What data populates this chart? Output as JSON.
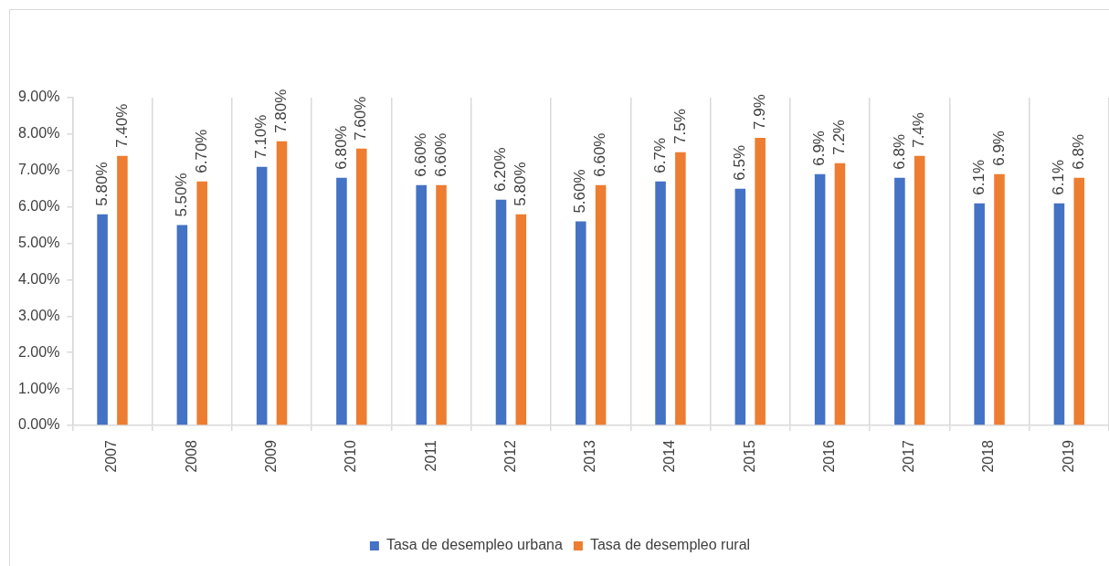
{
  "chart_data": {
    "type": "bar",
    "categories": [
      "2007",
      "2008",
      "2009",
      "2010",
      "2011",
      "2012",
      "2013",
      "2014",
      "2015",
      "2016",
      "2017",
      "2018",
      "2019"
    ],
    "series": [
      {
        "name": "Tasa de desempleo urbana",
        "color": "#4472c4",
        "values": [
          5.8,
          5.5,
          7.1,
          6.8,
          6.6,
          6.2,
          5.6,
          6.7,
          6.5,
          6.9,
          6.8,
          6.1,
          6.1
        ],
        "value_labels": [
          "5.80%",
          "5.50%",
          "7.10%",
          "6.80%",
          "6.60%",
          "6.20%",
          "5.60%",
          "6.7%",
          "6.5%",
          "6.9%",
          "6.8%",
          "6.1%",
          "6.1%"
        ]
      },
      {
        "name": "Tasa de desempleo rural",
        "color": "#ed7d31",
        "values": [
          7.4,
          6.7,
          7.8,
          7.6,
          6.6,
          5.8,
          6.6,
          7.5,
          7.9,
          7.2,
          7.4,
          6.9,
          6.8
        ],
        "value_labels": [
          "7.40%",
          "6.70%",
          "7.80%",
          "7.60%",
          "6.60%",
          "5.80%",
          "6.60%",
          "7.5%",
          "7.9%",
          "7.2%",
          "7.4%",
          "6.9%",
          "6.8%"
        ]
      }
    ],
    "ylim": [
      0,
      9
    ],
    "yticks": [
      {
        "value": 0,
        "label": "0.00%"
      },
      {
        "value": 1,
        "label": "1.00%"
      },
      {
        "value": 2,
        "label": "2.00%"
      },
      {
        "value": 3,
        "label": "3.00%"
      },
      {
        "value": 4,
        "label": "4.00%"
      },
      {
        "value": 5,
        "label": "5.00%"
      },
      {
        "value": 6,
        "label": "6.00%"
      },
      {
        "value": 7,
        "label": "7.00%"
      },
      {
        "value": 8,
        "label": "8.00%"
      },
      {
        "value": 9,
        "label": "9.00%"
      }
    ],
    "grid": "x",
    "legend": "bottom"
  }
}
